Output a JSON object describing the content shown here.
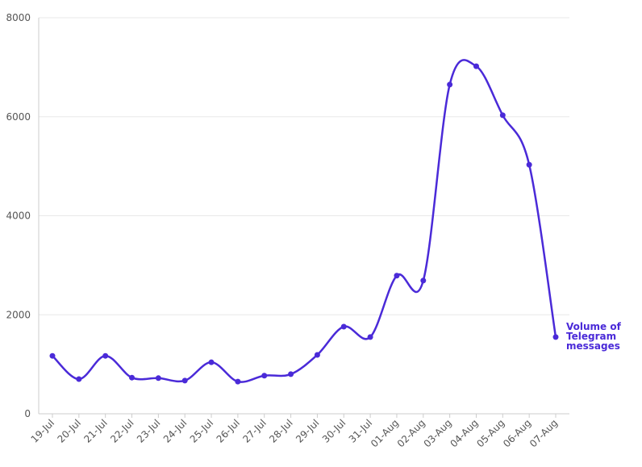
{
  "chart_data": {
    "type": "line",
    "categories": [
      "19-Jul",
      "20-Jul",
      "21-Jul",
      "22-Jul",
      "23-Jul",
      "24-Jul",
      "25-Jul",
      "26-Jul",
      "27-Jul",
      "28-Jul",
      "29-Jul",
      "30-Jul",
      "31-Jul",
      "01-Aug",
      "02-Aug",
      "03-Aug",
      "04-Aug",
      "05-Aug",
      "06-Aug",
      "07-Aug"
    ],
    "series": [
      {
        "name": "Volume of Telegram messages",
        "color": "#4a2ad8",
        "values": [
          1170,
          700,
          1170,
          730,
          720,
          670,
          1040,
          650,
          770,
          800,
          1190,
          1760,
          1550,
          2790,
          2690,
          6650,
          7020,
          6030,
          5030,
          1550
        ]
      }
    ],
    "ylim": [
      0,
      8000
    ],
    "yticks": [
      0,
      2000,
      4000,
      6000,
      8000
    ],
    "grid": true
  }
}
